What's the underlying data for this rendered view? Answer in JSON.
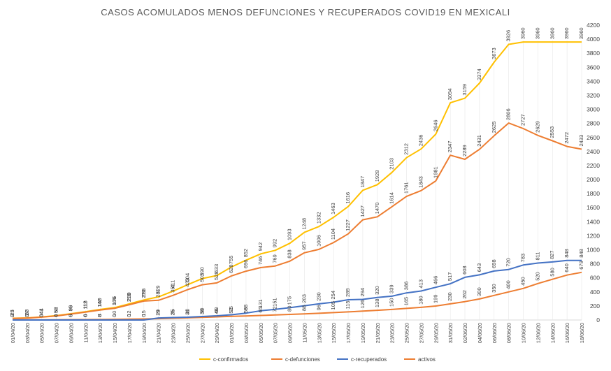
{
  "chart_data": {
    "type": "line",
    "title": "CASOS ACOMULADOS MENOS DEFUNCIONES Y RECUPERADOS COVID19 EN MEXICALI",
    "xlabel": "",
    "ylabel": "",
    "ylim": [
      0,
      4200
    ],
    "yticks": [
      0,
      200,
      400,
      600,
      800,
      1000,
      1200,
      1400,
      1600,
      1800,
      2000,
      2200,
      2400,
      2600,
      2800,
      3000,
      3200,
      3400,
      3600,
      3800,
      4000,
      4200
    ],
    "grid": false,
    "legend_position": "bottom",
    "x": [
      "01/04/20",
      "03/04/20",
      "05/04/20",
      "07/04/20",
      "09/04/20",
      "11/04/20",
      "13/04/20",
      "15/04/20",
      "17/04/20",
      "19/04/20",
      "21/04/20",
      "23/04/20",
      "25/04/20",
      "27/04/20",
      "29/04/20",
      "01/05/20",
      "03/05/20",
      "05/05/20",
      "07/05/20",
      "09/05/20",
      "11/05/20",
      "13/05/20",
      "15/05/20",
      "17/05/20",
      "19/05/20",
      "21/05/20",
      "23/05/20",
      "25/05/20",
      "27/05/20",
      "29/05/20",
      "31/05/20",
      "02/06/20",
      "04/06/20",
      "06/06/20",
      "08/06/20",
      "10/06/20",
      "12/06/20",
      "14/06/20",
      "16/06/20",
      "18/06/20"
    ],
    "series": [
      {
        "name": "c-confirmados",
        "color": "#FFC000",
        "values": [
          25,
          30,
          44,
          62,
          90,
          118,
          150,
          176,
          230,
          286,
          329,
          411,
          504,
          590,
          633,
          755,
          852,
          942,
          992,
          1093,
          1248,
          1332,
          1463,
          1616,
          1847,
          1928,
          2103,
          2312,
          2436,
          2646,
          3094,
          3159,
          3374,
          3673,
          3926,
          3960,
          3960,
          3960,
          3960,
          3960
        ]
      },
      {
        "name": "c-defunciones",
        "color": "#ED7D31",
        "values": [
          2,
          3,
          3,
          4,
          5,
          6,
          8,
          10,
          12,
          15,
          19,
          25,
          31,
          38,
          45,
          52,
          58,
          65,
          72,
          80,
          88,
          96,
          105,
          115,
          126,
          138,
          150,
          165,
          180,
          199,
          230,
          262,
          300,
          350,
          400,
          450,
          520,
          580,
          640,
          679
        ]
      },
      {
        "name": "c-recuperados",
        "color": "#4472C4",
        "values": [
          0,
          0,
          0,
          0,
          0,
          0,
          0,
          0,
          0,
          0,
          29,
          35,
          40,
          50,
          60,
          75,
          98,
          131,
          151,
          175,
          203,
          230,
          254,
          289,
          294,
          320,
          339,
          386,
          413,
          466,
          517,
          608,
          643,
          698,
          720,
          783,
          811,
          827,
          848,
          848
        ]
      },
      {
        "name": "activos",
        "color": "#ED7D31",
        "values": [
          23,
          27,
          41,
          58,
          85,
          112,
          142,
          166,
          218,
          270,
          281,
          351,
          433,
          502,
          528,
          628,
          696,
          746,
          769,
          838,
          957,
          1006,
          1104,
          1227,
          1427,
          1470,
          1614,
          1761,
          1843,
          1981,
          2347,
          2289,
          2431,
          2625,
          2806,
          2727,
          2629,
          2553,
          2472,
          2433
        ]
      }
    ],
    "annotations": {
      "confirmados_end": "3960",
      "activos_end": "2433",
      "recuperados_end": "848",
      "defunciones_end": "679"
    }
  }
}
